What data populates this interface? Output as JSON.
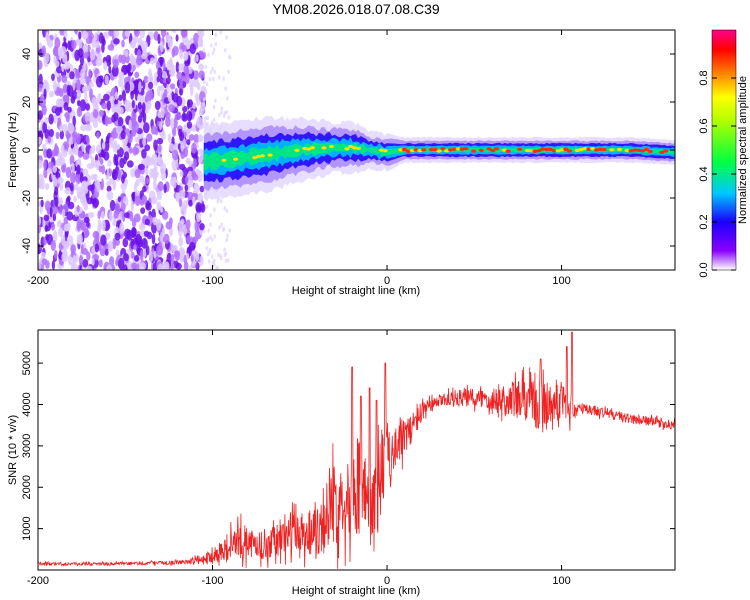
{
  "title": "YM08.2026.018.07.08.C39",
  "chart_data": [
    {
      "type": "heatmap",
      "id": "spectrogram",
      "xlabel": "Height of straight line (km)",
      "ylabel": "Frequency (Hz)",
      "xlim": [
        -200,
        165
      ],
      "ylim": [
        -50,
        50
      ],
      "xticks": [
        -200,
        -100,
        0,
        100
      ],
      "yticks": [
        -40,
        -20,
        0,
        20,
        40
      ],
      "noise_region_x": [
        -200,
        -105
      ],
      "signal_ridge": {
        "x": [
          -105,
          -90,
          -70,
          -50,
          -30,
          -20,
          -10,
          0,
          10,
          20,
          40,
          60,
          80,
          100,
          120,
          140,
          165
        ],
        "center_freq": [
          -5,
          -4,
          -2,
          0,
          1,
          1,
          0,
          -1,
          0,
          0,
          0,
          0,
          0,
          0,
          0,
          0,
          -1
        ],
        "half_width": [
          6,
          6,
          6,
          5,
          4,
          4,
          3,
          3,
          2,
          2,
          2,
          2,
          2,
          2,
          2,
          2,
          2
        ]
      },
      "colorbar": {
        "label": "Normalized spectral amplitude",
        "range": [
          0,
          1
        ],
        "ticks": [
          0.0,
          0.2,
          0.4,
          0.6,
          0.8
        ],
        "tick_labels": [
          "0.0",
          "0.2",
          "0.4",
          "0.6",
          "0.8"
        ]
      }
    },
    {
      "type": "line",
      "id": "snr",
      "xlabel": "Height of straight line (km)",
      "ylabel": "SNR (10 * v/v)",
      "xlim": [
        -200,
        165
      ],
      "ylim": [
        0,
        5800
      ],
      "xticks": [
        -200,
        -100,
        0,
        100
      ],
      "yticks": [
        1000,
        2000,
        3000,
        4000,
        5000
      ],
      "series": [
        {
          "name": "SNR",
          "color": "#ee2222",
          "x": [
            -200,
            -150,
            -120,
            -105,
            -95,
            -85,
            -75,
            -65,
            -55,
            -45,
            -35,
            -25,
            -15,
            -10,
            -5,
            0,
            10,
            20,
            30,
            40,
            50,
            60,
            70,
            80,
            90,
            100,
            105,
            110,
            120,
            130,
            140,
            150,
            165
          ],
          "mean": [
            150,
            150,
            180,
            250,
            450,
            700,
            600,
            650,
            900,
            900,
            1300,
            1800,
            2200,
            1400,
            2000,
            2800,
            3200,
            3800,
            4100,
            4150,
            4150,
            4150,
            4100,
            4100,
            3950,
            4150,
            3850,
            3900,
            3850,
            3750,
            3650,
            3600,
            3500
          ],
          "noise": [
            40,
            40,
            50,
            120,
            300,
            450,
            350,
            400,
            550,
            600,
            900,
            1100,
            1300,
            700,
            1100,
            800,
            450,
            250,
            150,
            200,
            250,
            300,
            450,
            550,
            700,
            450,
            350,
            150,
            130,
            130,
            120,
            120,
            120
          ],
          "peaks": [
            [
              -20,
              4900
            ],
            [
              -1,
              5000
            ],
            [
              88,
              5100
            ],
            [
              106,
              5750
            ],
            [
              103,
              5400
            ],
            [
              -6,
              4100
            ],
            [
              -15,
              4200
            ],
            [
              -10,
              4400
            ]
          ]
        }
      ]
    }
  ]
}
